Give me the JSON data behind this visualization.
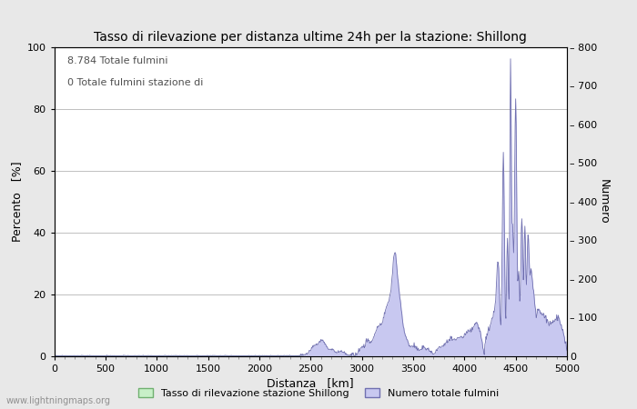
{
  "title": "Tasso di rilevazione per distanza ultime 24h per la stazione: Shillong",
  "annotation_line1": "8.784 Totale fulmini",
  "annotation_line2": "0 Totale fulmini stazione di",
  "xlabel": "Distanza   [km]",
  "ylabel_left": "Percento   [%]",
  "ylabel_right": "Numero",
  "xlim": [
    0,
    5000
  ],
  "ylim_left": [
    0,
    100
  ],
  "ylim_right": [
    0,
    800
  ],
  "xticks": [
    0,
    500,
    1000,
    1500,
    2000,
    2500,
    3000,
    3500,
    4000,
    4500,
    5000
  ],
  "yticks_left": [
    0,
    20,
    40,
    60,
    80,
    100
  ],
  "yticks_right": [
    0,
    100,
    200,
    300,
    400,
    500,
    600,
    700,
    800
  ],
  "background_color": "#e8e8e8",
  "plot_bg_color": "#ffffff",
  "grid_color": "#c0c0c0",
  "fill_color_blue": "#c8c8f0",
  "line_color_blue": "#7070b0",
  "fill_color_green": "#c8f0c8",
  "line_color_green": "#70b070",
  "watermark": "www.lightningmaps.org",
  "legend_label_green": "Tasso di rilevazione stazione Shillong",
  "legend_label_blue": "Numero totale fulmini"
}
